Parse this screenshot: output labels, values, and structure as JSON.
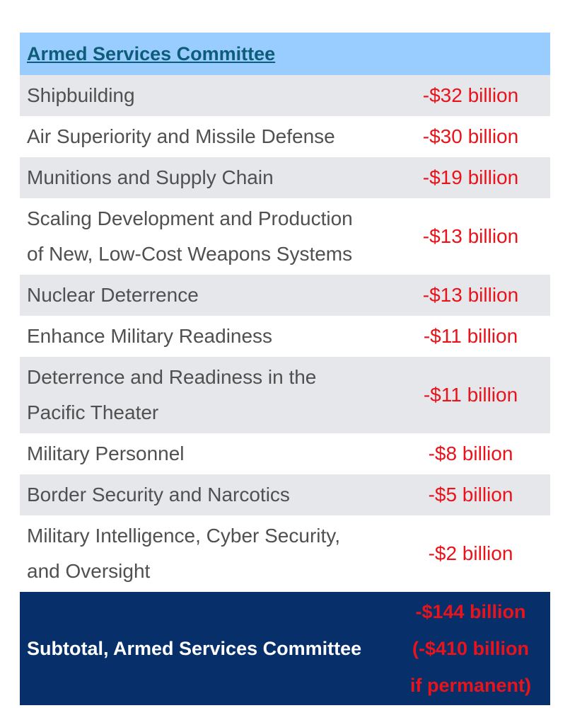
{
  "header": {
    "title": "Armed Services Committee"
  },
  "rows": [
    {
      "label": "Shipbuilding",
      "value": "-$32 billion"
    },
    {
      "label": "Air Superiority and Missile Defense",
      "value": "-$30 billion"
    },
    {
      "label": "Munitions and Supply Chain",
      "value": "-$19 billion"
    },
    {
      "label_line1": "Scaling Development and Production",
      "label_line2": "of New, Low-Cost Weapons Systems",
      "value": "-$13 billion"
    },
    {
      "label": "Nuclear Deterrence",
      "value": "-$13 billion"
    },
    {
      "label": "Enhance Military Readiness",
      "value": "-$11 billion"
    },
    {
      "label_line1": "Deterrence and Readiness in the",
      "label_line2": "Pacific Theater",
      "value": "-$11 billion"
    },
    {
      "label": "Military Personnel",
      "value": "-$8 billion"
    },
    {
      "label": "Border Security and Narcotics",
      "value": "-$5 billion"
    },
    {
      "label_line1": "Military Intelligence, Cyber Security,",
      "label_line2": "and Oversight",
      "value": "-$2 billion"
    }
  ],
  "subtotal": {
    "label": "Subtotal, Armed Services Committee",
    "value_line1": "-$144 billion",
    "value_line2": "(-$410 billion",
    "value_line3": "if permanent)"
  },
  "colors": {
    "header_bg": "#99ccff",
    "header_text": "#0d5c78",
    "row_shaded": "#e6e7eb",
    "label_text": "#505050",
    "value_text": "#e8131b",
    "subtotal_bg": "#07306b"
  }
}
